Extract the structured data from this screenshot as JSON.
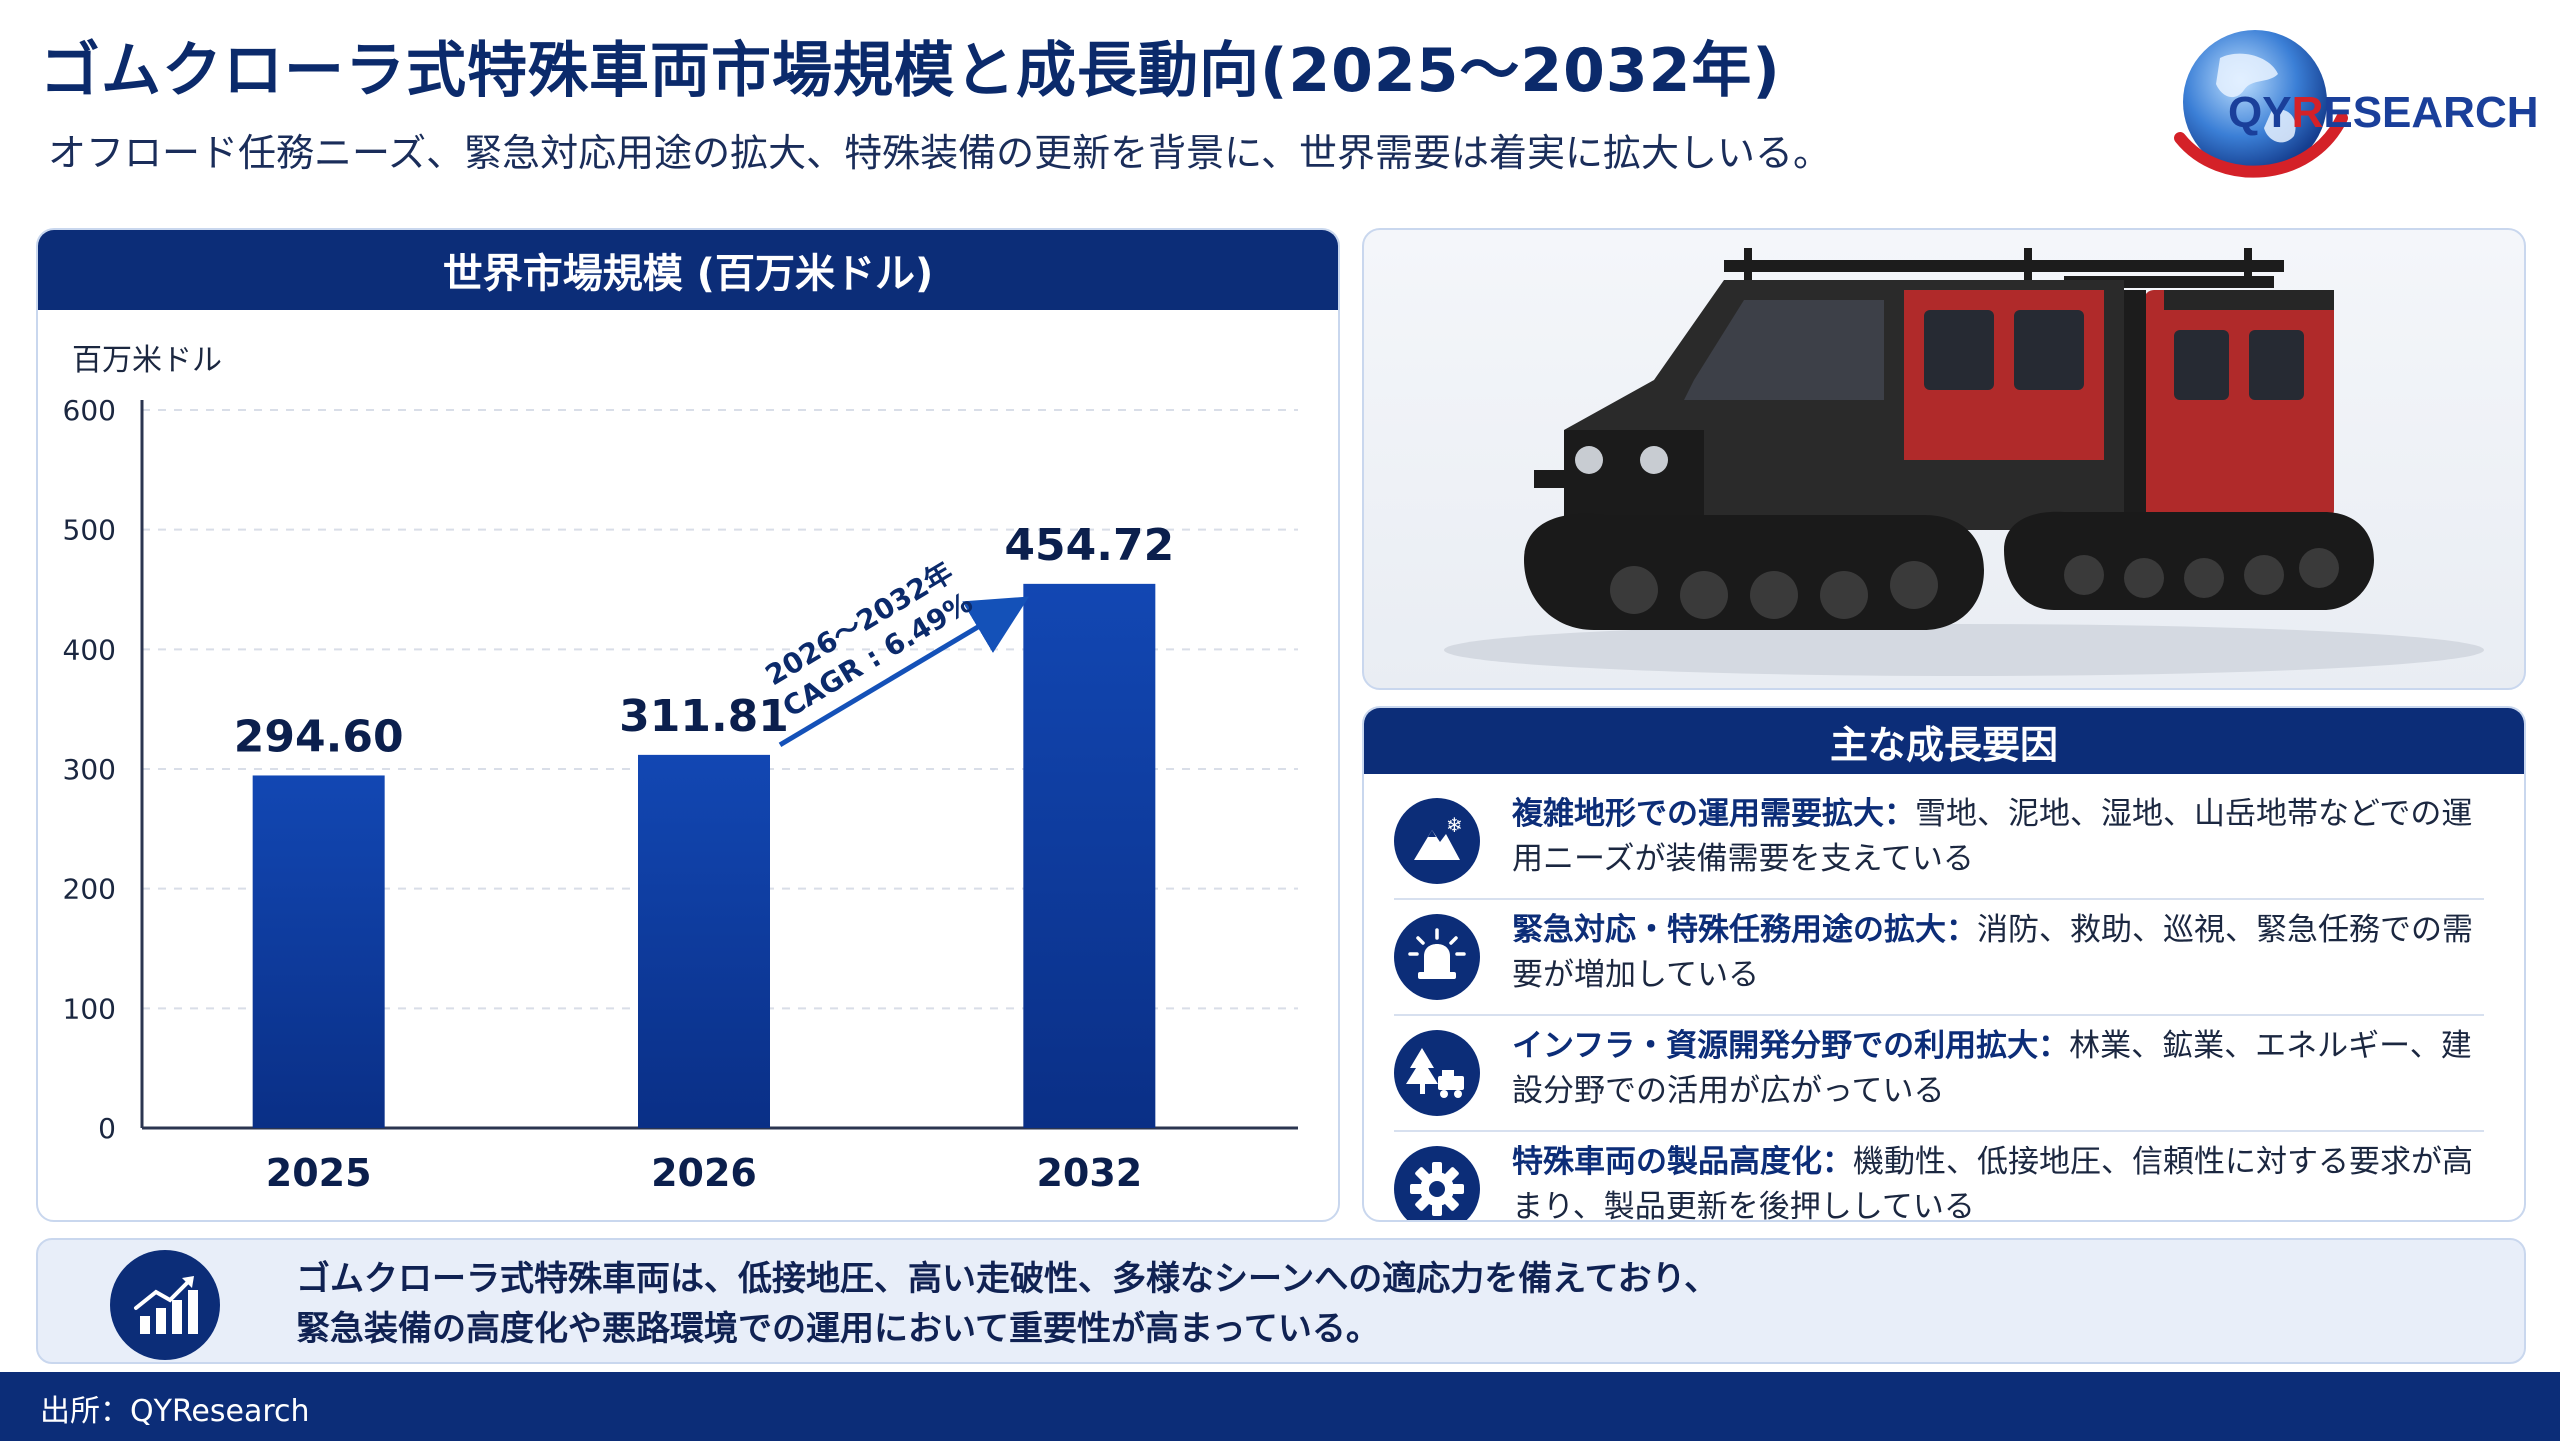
{
  "header": {
    "title": "ゴムクローラ式特殊車両市場規模と成長動向(2025～2032年)",
    "subtitle": "オフロード任務ニーズ、緊急対応用途の拡大、特殊装備の更新を背景に、世界需要は着実に拡大しいる。"
  },
  "logo": {
    "qy": "QY",
    "r": "R",
    "rest": "ESEARCH",
    "colors": {
      "blue": "#1a3f9a",
      "red": "#d42128"
    }
  },
  "chart_panel": {
    "heading": "世界市場規模 (百万米ドル)"
  },
  "chart_data": {
    "type": "bar",
    "title": "世界市場規模 (百万米ドル)",
    "ylabel": "百万米ドル",
    "categories": [
      "2025",
      "2026",
      "2032"
    ],
    "values": [
      294.6,
      311.81,
      454.72
    ],
    "value_labels": [
      "294.60",
      "311.81",
      "454.72"
    ],
    "yticks": [
      "0",
      "100",
      "200",
      "300",
      "400",
      "500",
      "600"
    ],
    "ylim": [
      0,
      600
    ],
    "grid": "horizontal dashed",
    "annotation": {
      "line1": "2026～2032年",
      "line2": "CAGR : 6.49%",
      "from": "2026",
      "to": "2032"
    },
    "bar_color": "#0d3a9a"
  },
  "drivers": {
    "heading": "主な成長要因",
    "items": [
      {
        "icon": "mountain-snow-icon",
        "bold": "複雑地形での運用需要拡大：",
        "text": "雪地、泥地、湿地、山岳地帯などでの運用ニーズが装備需要を支えている"
      },
      {
        "icon": "emergency-light-icon",
        "bold": "緊急対応・特殊任務用途の拡大：",
        "text": "消防、救助、巡視、緊急任務での需要が増加している"
      },
      {
        "icon": "tree-vehicle-icon",
        "bold": "インフラ・資源開発分野での利用拡大：",
        "text": "林業、鉱業、エネルギー、建設分野での活用が広がっている"
      },
      {
        "icon": "gear-icon",
        "bold": "特殊車両の製品高度化：",
        "text": "機動性、低接地圧、信頼性に対する要求が高まり、製品更新を後押ししている"
      }
    ]
  },
  "summary": {
    "line1": "ゴムクローラ式特殊車両は、低接地圧、高い走破性、多様なシーンへの適応力を備えており、",
    "line2": "緊急装備の高度化や悪路環境での運用において重要性が高まっている。"
  },
  "footer": {
    "source": "出所：QYResearch"
  },
  "colors": {
    "navy": "#0c2d78",
    "bar": "#0d3a9a",
    "panel_border": "#c9d7ee"
  }
}
